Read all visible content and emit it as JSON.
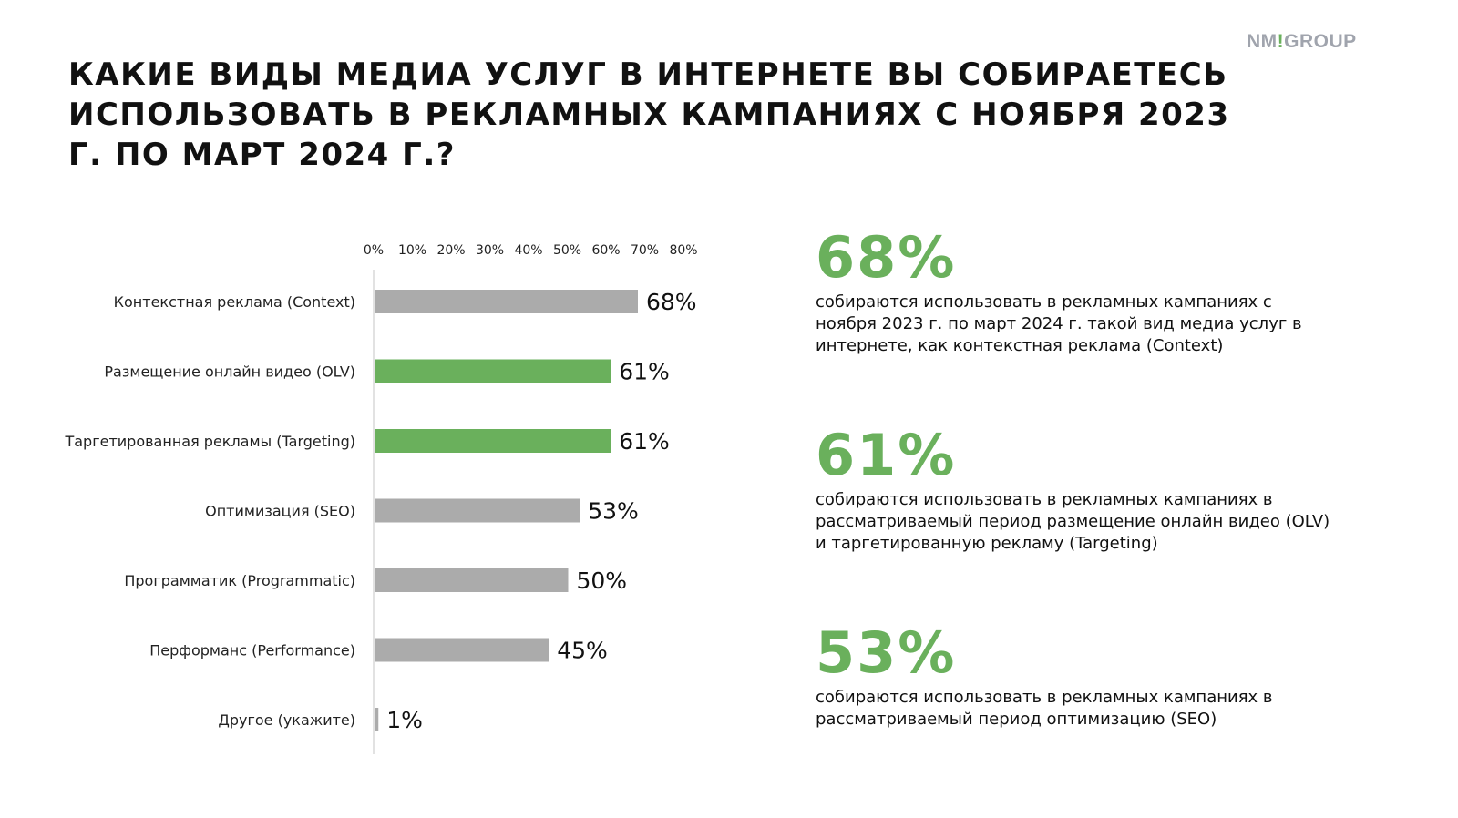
{
  "logo": {
    "text_left": "NM",
    "text_mark": "!",
    "text_right": "GROUP"
  },
  "title": "Какие виды медиа услуг в интернете вы собираетесь использовать в рекламных кампаниях с ноября 2023 г. по март 2024 г.?",
  "colors": {
    "accent": "#6ab05c",
    "bar_default": "#ababab",
    "logo": "#a0a4ad"
  },
  "chart_data": {
    "type": "bar",
    "orientation": "horizontal",
    "categories": [
      "Контекстная реклама (Context)",
      "Размещение онлайн видео (OLV)",
      "Таргетированная рекламы (Targeting)",
      "Оптимизация (SEO)",
      "Программатик (Programmatic)",
      "Перформанс (Performance)",
      "Другое (укажите)"
    ],
    "values": [
      68,
      61,
      61,
      53,
      50,
      45,
      1
    ],
    "data_labels": [
      "68%",
      "61%",
      "61%",
      "53%",
      "50%",
      "45%",
      "1%"
    ],
    "highlighted": [
      false,
      true,
      true,
      false,
      false,
      false,
      false
    ],
    "xlim": [
      0,
      80
    ],
    "x_ticks": [
      "0%",
      "10%",
      "20%",
      "30%",
      "40%",
      "50%",
      "60%",
      "70%",
      "80%"
    ],
    "x_axis_position": "top",
    "grid": false
  },
  "stats": [
    {
      "value": "68%",
      "text": "собираются использовать в рекламных кампаниях с ноября 2023 г. по март 2024 г. такой вид медиа услуг в интернете, как контекстная реклама (Context)"
    },
    {
      "value": "61%",
      "text": "собираются использовать в рекламных кампаниях в рассматриваемый период размещение онлайн видео (OLV) и таргетированную рекламу (Targeting)"
    },
    {
      "value": "53%",
      "text": "собираются использовать в рекламных кампаниях в рассматриваемый период оптимизацию (SEO)"
    }
  ]
}
